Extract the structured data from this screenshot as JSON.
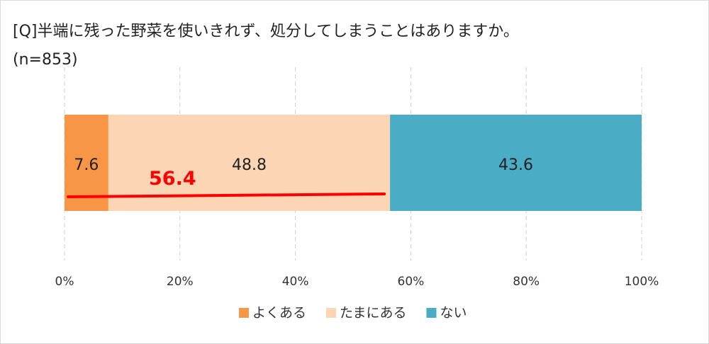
{
  "title": "[Q]半端に残った野菜を使いきれず、処分してしまうことはありますか。",
  "subtitle": "(n=853)",
  "chart_data": {
    "type": "bar",
    "orientation": "horizontal",
    "stacked": true,
    "percent_stacked": true,
    "title": "[Q]半端に残った野菜を使いきれず、処分してしまうことはありますか。",
    "subtitle": "(n=853)",
    "xlim": [
      0,
      100
    ],
    "x_ticks": [
      "0%",
      "20%",
      "40%",
      "60%",
      "80%",
      "100%"
    ],
    "grid": true,
    "legend_position": "bottom",
    "series": [
      {
        "name": "よくある",
        "value": 7.6,
        "label": "7.6",
        "color": "#f79646"
      },
      {
        "name": "たまにある",
        "value": 48.8,
        "label": "48.8",
        "color": "#fcd5b5"
      },
      {
        "name": "ない",
        "value": 43.6,
        "label": "43.6",
        "color": "#4bacc6"
      }
    ],
    "annotation": {
      "text": "56.4",
      "value": 56.4,
      "color": "#ff0000",
      "spans_series": [
        "よくある",
        "たまにある"
      ]
    }
  }
}
